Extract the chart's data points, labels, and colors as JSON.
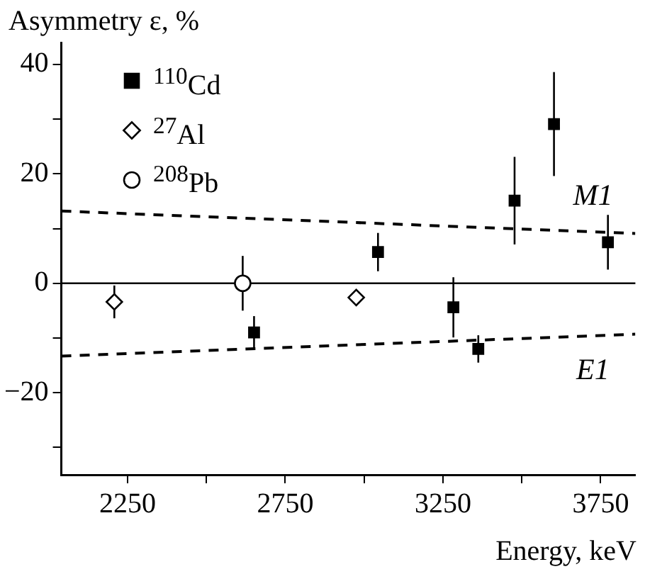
{
  "chart_data": {
    "type": "scatter",
    "xlabel": "Energy, keV",
    "ylabel": "Asymmetry ε, %",
    "xlim": [
      2040,
      3860
    ],
    "xticks": [
      2250,
      {
        "value": 2500,
        "label": null
      },
      2750,
      {
        "value": 3000,
        "label": null
      },
      3250,
      {
        "value": 3500,
        "label": null
      },
      3750
    ],
    "ylim": [
      -35,
      44
    ],
    "yticks": [
      {
        "value": -30,
        "label": null
      },
      {
        "value": -20,
        "label": "−20"
      },
      {
        "value": -10,
        "label": null
      },
      0,
      {
        "value": 10,
        "label": null
      },
      20,
      {
        "value": 30,
        "label": null
      },
      40
    ],
    "grid": false,
    "legend": "top left",
    "series": [
      {
        "name": "$^{110}$Cd",
        "type": "scatter",
        "marker": "square",
        "color": "#000000",
        "x": [
          2651,
          3044,
          3283,
          3362,
          3477,
          3602,
          3773
        ],
        "values": [
          -9,
          5.7,
          -4.4,
          -12,
          15.1,
          29.1,
          7.5
        ],
        "errors": [
          3,
          3.5,
          5.5,
          2.5,
          8,
          9.5,
          5
        ]
      },
      {
        "name": "$^{27}$Al",
        "type": "scatter",
        "marker": "diamond",
        "color": "#000000",
        "x": [
          2208,
          2975
        ],
        "values": [
          -3.4,
          -2.6
        ],
        "errors": [
          3,
          null
        ]
      },
      {
        "name": "$^{208}$Pb",
        "type": "scatter",
        "marker": "circle",
        "color": "#000000",
        "x": [
          2615
        ],
        "values": [
          0
        ],
        "errors": [
          5
        ]
      },
      {
        "name": "M1",
        "type": "line",
        "marker": "none",
        "line_style": "dashed",
        "color": "#000000",
        "x": [
          2040,
          3860
        ],
        "values": [
          13.2,
          9.1
        ]
      },
      {
        "name": "E1",
        "type": "line",
        "marker": "none",
        "line_style": "dashed",
        "color": "#000000",
        "x": [
          2040,
          3860
        ],
        "values": [
          -13.3,
          -9.3
        ]
      }
    ],
    "ref_lines": [
      {
        "axis": "y",
        "value": 0,
        "color": "#000000",
        "line_style": "solid"
      }
    ]
  }
}
